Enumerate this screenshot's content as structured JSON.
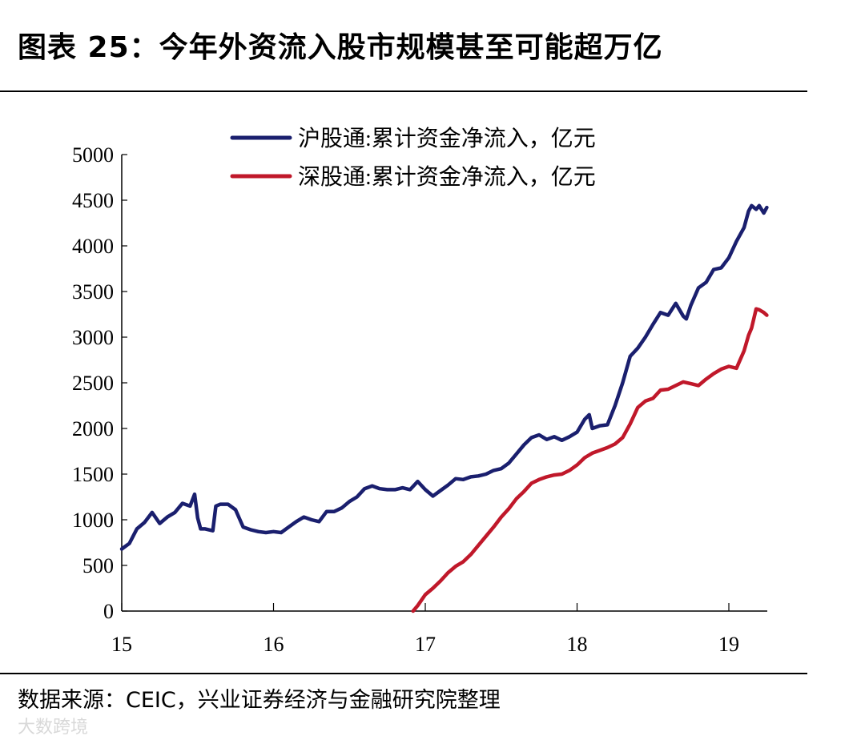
{
  "title": "图表 25：今年外资流入股市规模甚至可能超万亿",
  "source": "数据来源：CEIC，兴业证券经济与金融研究院整理",
  "watermark": "大数跨境",
  "chart_data": {
    "type": "line",
    "title": "",
    "xlabel": "",
    "ylabel": "",
    "xlim": [
      15,
      19.25
    ],
    "ylim": [
      0,
      5000
    ],
    "x_ticks": [
      "15",
      "16",
      "17",
      "18",
      "19"
    ],
    "y_ticks": [
      "0",
      "500",
      "1000",
      "1500",
      "2000",
      "2500",
      "3000",
      "3500",
      "4000",
      "4500",
      "5000"
    ],
    "legend_position": "top-center",
    "series": [
      {
        "name": "沪股通:累计资金净流入，亿元",
        "color": "#1a1f6e",
        "x": [
          15.0,
          15.05,
          15.1,
          15.15,
          15.2,
          15.25,
          15.3,
          15.35,
          15.4,
          15.45,
          15.48,
          15.5,
          15.52,
          15.55,
          15.6,
          15.62,
          15.65,
          15.7,
          15.75,
          15.8,
          15.85,
          15.9,
          15.95,
          16.0,
          16.05,
          16.1,
          16.15,
          16.2,
          16.25,
          16.3,
          16.35,
          16.4,
          16.45,
          16.5,
          16.55,
          16.6,
          16.65,
          16.7,
          16.75,
          16.8,
          16.85,
          16.9,
          16.95,
          17.0,
          17.05,
          17.1,
          17.15,
          17.2,
          17.25,
          17.3,
          17.35,
          17.4,
          17.45,
          17.5,
          17.55,
          17.6,
          17.65,
          17.7,
          17.75,
          17.8,
          17.85,
          17.9,
          17.95,
          18.0,
          18.05,
          18.08,
          18.1,
          18.15,
          18.2,
          18.25,
          18.3,
          18.35,
          18.4,
          18.45,
          18.5,
          18.55,
          18.6,
          18.65,
          18.7,
          18.72,
          18.75,
          18.8,
          18.85,
          18.9,
          18.95,
          19.0,
          19.05,
          19.1,
          19.13,
          19.15,
          19.18,
          19.2,
          19.23,
          19.25
        ],
        "values": [
          680,
          740,
          900,
          970,
          1080,
          960,
          1030,
          1080,
          1180,
          1150,
          1280,
          1020,
          900,
          900,
          880,
          1150,
          1170,
          1170,
          1110,
          920,
          890,
          870,
          860,
          870,
          860,
          920,
          980,
          1030,
          1000,
          980,
          1090,
          1090,
          1130,
          1200,
          1250,
          1340,
          1370,
          1340,
          1330,
          1330,
          1350,
          1330,
          1420,
          1330,
          1260,
          1320,
          1380,
          1450,
          1440,
          1470,
          1480,
          1500,
          1540,
          1560,
          1620,
          1720,
          1820,
          1900,
          1930,
          1880,
          1910,
          1870,
          1910,
          1960,
          2100,
          2150,
          2000,
          2030,
          2040,
          2250,
          2500,
          2790,
          2880,
          3000,
          3140,
          3270,
          3240,
          3370,
          3230,
          3200,
          3350,
          3540,
          3600,
          3740,
          3760,
          3870,
          4050,
          4200,
          4380,
          4440,
          4400,
          4440,
          4360,
          4420
        ]
      },
      {
        "name": "深股通:累计资金净流入，亿元",
        "color": "#c0182a",
        "x": [
          16.92,
          16.95,
          17.0,
          17.05,
          17.1,
          17.15,
          17.2,
          17.25,
          17.3,
          17.35,
          17.4,
          17.45,
          17.5,
          17.55,
          17.6,
          17.65,
          17.7,
          17.75,
          17.8,
          17.85,
          17.9,
          17.95,
          18.0,
          18.05,
          18.1,
          18.15,
          18.2,
          18.25,
          18.3,
          18.35,
          18.4,
          18.45,
          18.5,
          18.55,
          18.6,
          18.65,
          18.7,
          18.75,
          18.8,
          18.85,
          18.9,
          18.95,
          19.0,
          19.05,
          19.1,
          19.13,
          19.15,
          19.18,
          19.2,
          19.23,
          19.25
        ],
        "values": [
          0,
          60,
          180,
          250,
          330,
          420,
          490,
          540,
          620,
          720,
          820,
          920,
          1030,
          1120,
          1230,
          1310,
          1400,
          1440,
          1470,
          1490,
          1500,
          1540,
          1600,
          1680,
          1730,
          1760,
          1790,
          1830,
          1900,
          2050,
          2230,
          2300,
          2330,
          2420,
          2430,
          2470,
          2510,
          2490,
          2470,
          2540,
          2600,
          2650,
          2680,
          2660,
          2850,
          3020,
          3100,
          3310,
          3300,
          3270,
          3240
        ]
      }
    ]
  }
}
